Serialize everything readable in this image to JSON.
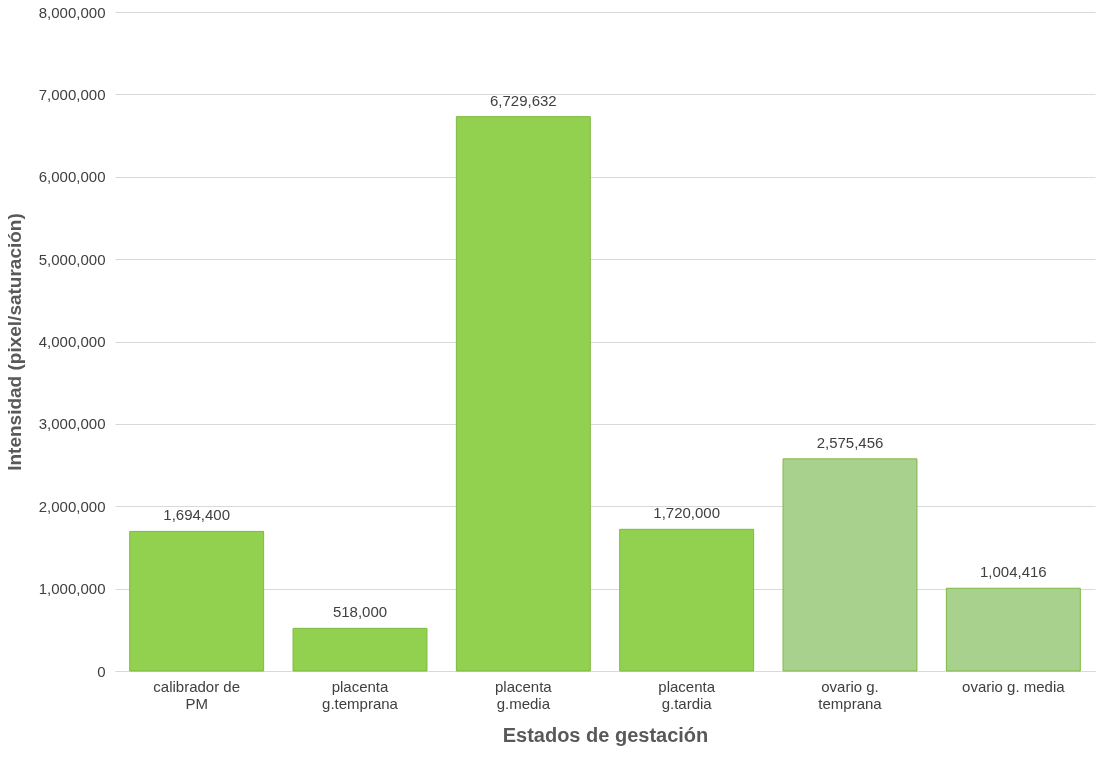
{
  "chart_data": {
    "type": "bar",
    "xlabel": "Estados de gestación",
    "ylabel": "Intensidad (pixel/saturación)",
    "categories": [
      "calibrador de\nPM",
      "placenta\ng.temprana",
      "placenta\ng.media",
      "placenta\ng.tardia",
      "ovario g.\ntemprana",
      "ovario g. media"
    ],
    "values": [
      1694400,
      518000,
      6729632,
      1720000,
      2575456,
      1004416
    ],
    "value_labels": [
      "1,694,400",
      "518,000",
      "6,729,632",
      "1,720,000",
      "2,575,456",
      "1,004,416"
    ],
    "colors": [
      "#92d050",
      "#92d050",
      "#92d050",
      "#92d050",
      "#a9d18e",
      "#a9d18e"
    ],
    "ylim": [
      0,
      8000000
    ],
    "yticks": [
      0,
      {
        "value": 1000000,
        "label": "1,000,000"
      },
      {
        "value": 2000000,
        "label": "2,000,000"
      },
      {
        "value": 3000000,
        "label": "3,000,000"
      },
      {
        "value": 4000000,
        "label": "4,000,000"
      },
      {
        "value": 5000000,
        "label": "5,000,000"
      },
      {
        "value": 6000000,
        "label": "6,000,000"
      },
      {
        "value": 7000000,
        "label": "7,000,000"
      },
      {
        "value": 8000000,
        "label": "8,000,000"
      }
    ],
    "grid": "y"
  }
}
